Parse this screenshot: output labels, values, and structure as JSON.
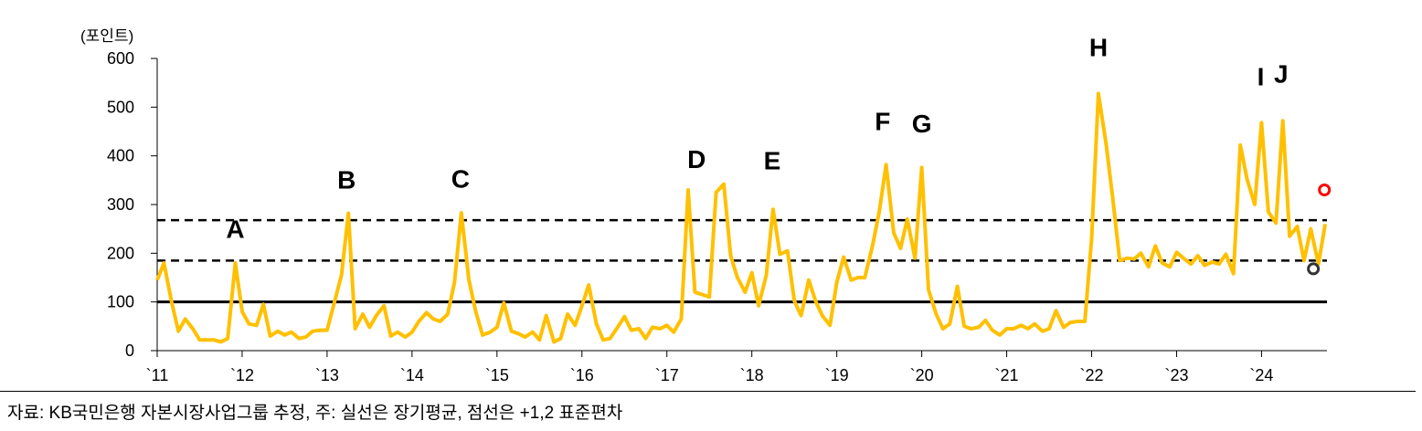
{
  "chart_data": {
    "type": "line",
    "ylabel": "(포인트)",
    "ylim": [
      0,
      600
    ],
    "yticks": [
      "0",
      "100",
      "200",
      "300",
      "400",
      "500",
      "600"
    ],
    "xlim": [
      2011,
      2024.77
    ],
    "xticks": [
      {
        "x": 2011,
        "label": "`11"
      },
      {
        "x": 2012,
        "label": "`12"
      },
      {
        "x": 2013,
        "label": "`13"
      },
      {
        "x": 2014,
        "label": "`14"
      },
      {
        "x": 2015,
        "label": "`15"
      },
      {
        "x": 2016,
        "label": "`16"
      },
      {
        "x": 2017,
        "label": "`17"
      },
      {
        "x": 2018,
        "label": "`18"
      },
      {
        "x": 2019,
        "label": "`19"
      },
      {
        "x": 2020,
        "label": "`20"
      },
      {
        "x": 2021,
        "label": "`21"
      },
      {
        "x": 2022,
        "label": "`22"
      },
      {
        "x": 2023,
        "label": "`23"
      },
      {
        "x": 2024,
        "label": "`24"
      }
    ],
    "series": [
      {
        "color": "#FFC000",
        "points": [
          [
            2011.0,
            145
          ],
          [
            2011.08,
            180
          ],
          [
            2011.17,
            100
          ],
          [
            2011.25,
            40
          ],
          [
            2011.33,
            65
          ],
          [
            2011.42,
            45
          ],
          [
            2011.5,
            22
          ],
          [
            2011.58,
            22
          ],
          [
            2011.67,
            22
          ],
          [
            2011.75,
            18
          ],
          [
            2011.83,
            25
          ],
          [
            2011.92,
            180
          ],
          [
            2012.0,
            80
          ],
          [
            2012.08,
            55
          ],
          [
            2012.17,
            52
          ],
          [
            2012.25,
            95
          ],
          [
            2012.33,
            30
          ],
          [
            2012.42,
            40
          ],
          [
            2012.5,
            32
          ],
          [
            2012.58,
            38
          ],
          [
            2012.67,
            25
          ],
          [
            2012.75,
            28
          ],
          [
            2012.83,
            40
          ],
          [
            2012.92,
            42
          ],
          [
            2013.0,
            42
          ],
          [
            2013.08,
            95
          ],
          [
            2013.17,
            155
          ],
          [
            2013.25,
            282
          ],
          [
            2013.33,
            45
          ],
          [
            2013.42,
            75
          ],
          [
            2013.5,
            48
          ],
          [
            2013.58,
            72
          ],
          [
            2013.67,
            92
          ],
          [
            2013.75,
            30
          ],
          [
            2013.83,
            38
          ],
          [
            2013.92,
            28
          ],
          [
            2014.0,
            38
          ],
          [
            2014.08,
            60
          ],
          [
            2014.17,
            78
          ],
          [
            2014.25,
            65
          ],
          [
            2014.33,
            60
          ],
          [
            2014.42,
            75
          ],
          [
            2014.5,
            140
          ],
          [
            2014.58,
            283
          ],
          [
            2014.67,
            145
          ],
          [
            2014.75,
            80
          ],
          [
            2014.83,
            32
          ],
          [
            2014.92,
            38
          ],
          [
            2015.0,
            48
          ],
          [
            2015.08,
            98
          ],
          [
            2015.17,
            40
          ],
          [
            2015.25,
            35
          ],
          [
            2015.33,
            28
          ],
          [
            2015.42,
            38
          ],
          [
            2015.5,
            22
          ],
          [
            2015.58,
            72
          ],
          [
            2015.67,
            18
          ],
          [
            2015.75,
            25
          ],
          [
            2015.83,
            75
          ],
          [
            2015.92,
            52
          ],
          [
            2016.0,
            92
          ],
          [
            2016.08,
            135
          ],
          [
            2016.17,
            55
          ],
          [
            2016.25,
            22
          ],
          [
            2016.33,
            25
          ],
          [
            2016.42,
            48
          ],
          [
            2016.5,
            70
          ],
          [
            2016.58,
            42
          ],
          [
            2016.67,
            45
          ],
          [
            2016.75,
            25
          ],
          [
            2016.83,
            48
          ],
          [
            2016.92,
            45
          ],
          [
            2017.0,
            52
          ],
          [
            2017.08,
            38
          ],
          [
            2017.17,
            65
          ],
          [
            2017.25,
            330
          ],
          [
            2017.33,
            120
          ],
          [
            2017.42,
            115
          ],
          [
            2017.5,
            110
          ],
          [
            2017.58,
            325
          ],
          [
            2017.67,
            342
          ],
          [
            2017.75,
            195
          ],
          [
            2017.83,
            150
          ],
          [
            2017.92,
            120
          ],
          [
            2018.0,
            160
          ],
          [
            2018.08,
            92
          ],
          [
            2018.17,
            155
          ],
          [
            2018.25,
            290
          ],
          [
            2018.33,
            198
          ],
          [
            2018.42,
            205
          ],
          [
            2018.5,
            102
          ],
          [
            2018.58,
            72
          ],
          [
            2018.67,
            145
          ],
          [
            2018.75,
            102
          ],
          [
            2018.83,
            72
          ],
          [
            2018.92,
            52
          ],
          [
            2019.0,
            140
          ],
          [
            2019.08,
            192
          ],
          [
            2019.17,
            145
          ],
          [
            2019.25,
            150
          ],
          [
            2019.33,
            150
          ],
          [
            2019.42,
            215
          ],
          [
            2019.5,
            285
          ],
          [
            2019.58,
            382
          ],
          [
            2019.67,
            242
          ],
          [
            2019.75,
            210
          ],
          [
            2019.83,
            270
          ],
          [
            2019.92,
            190
          ],
          [
            2020.0,
            376
          ],
          [
            2020.08,
            125
          ],
          [
            2020.17,
            75
          ],
          [
            2020.25,
            45
          ],
          [
            2020.33,
            55
          ],
          [
            2020.42,
            132
          ],
          [
            2020.5,
            50
          ],
          [
            2020.58,
            45
          ],
          [
            2020.67,
            48
          ],
          [
            2020.75,
            62
          ],
          [
            2020.83,
            42
          ],
          [
            2020.92,
            32
          ],
          [
            2021.0,
            45
          ],
          [
            2021.08,
            45
          ],
          [
            2021.17,
            52
          ],
          [
            2021.25,
            45
          ],
          [
            2021.33,
            55
          ],
          [
            2021.42,
            40
          ],
          [
            2021.5,
            45
          ],
          [
            2021.58,
            82
          ],
          [
            2021.67,
            48
          ],
          [
            2021.75,
            58
          ],
          [
            2021.83,
            60
          ],
          [
            2021.92,
            60
          ],
          [
            2022.0,
            230
          ],
          [
            2022.08,
            528
          ],
          [
            2022.17,
            425
          ],
          [
            2022.25,
            310
          ],
          [
            2022.33,
            185
          ],
          [
            2022.42,
            190
          ],
          [
            2022.5,
            188
          ],
          [
            2022.58,
            200
          ],
          [
            2022.67,
            172
          ],
          [
            2022.75,
            215
          ],
          [
            2022.83,
            180
          ],
          [
            2022.92,
            172
          ],
          [
            2023.0,
            202
          ],
          [
            2023.08,
            190
          ],
          [
            2023.17,
            178
          ],
          [
            2023.25,
            195
          ],
          [
            2023.33,
            175
          ],
          [
            2023.42,
            182
          ],
          [
            2023.5,
            178
          ],
          [
            2023.58,
            198
          ],
          [
            2023.67,
            158
          ],
          [
            2023.75,
            422
          ],
          [
            2023.83,
            352
          ],
          [
            2023.92,
            300
          ],
          [
            2024.0,
            468
          ],
          [
            2024.08,
            285
          ],
          [
            2024.17,
            262
          ],
          [
            2024.25,
            472
          ],
          [
            2024.33,
            235
          ],
          [
            2024.42,
            255
          ],
          [
            2024.5,
            185
          ],
          [
            2024.58,
            250
          ],
          [
            2024.67,
            178
          ],
          [
            2024.75,
            260
          ]
        ]
      }
    ],
    "reference_lines": [
      {
        "label": "장기평균",
        "y": 100,
        "style": "solid"
      },
      {
        "label": "+1 표준편차",
        "y": 185,
        "style": "dashed"
      },
      {
        "label": "+2 표준편차",
        "y": 268,
        "style": "dashed"
      }
    ],
    "markers": [
      {
        "x": 2024.61,
        "y": 168,
        "color": "#333333"
      },
      {
        "x": 2024.74,
        "y": 330,
        "color": "#FF0000"
      }
    ],
    "event_labels": [
      {
        "text": "A",
        "x": 2011.92,
        "y": 232
      },
      {
        "text": "B",
        "x": 2013.23,
        "y": 333
      },
      {
        "text": "C",
        "x": 2014.57,
        "y": 335
      },
      {
        "text": "D",
        "x": 2017.35,
        "y": 375
      },
      {
        "text": "E",
        "x": 2018.24,
        "y": 372
      },
      {
        "text": "F",
        "x": 2019.54,
        "y": 453
      },
      {
        "text": "G",
        "x": 2020.0,
        "y": 448
      },
      {
        "text": "H",
        "x": 2022.08,
        "y": 605
      },
      {
        "text": "I",
        "x": 2023.99,
        "y": 545
      },
      {
        "text": "J",
        "x": 2024.23,
        "y": 550
      }
    ]
  },
  "source": "자료: KB국민은행 자본시장사업그룹 추정, 주: 실선은 장기평균, 점선은 +1,2 표준편차"
}
